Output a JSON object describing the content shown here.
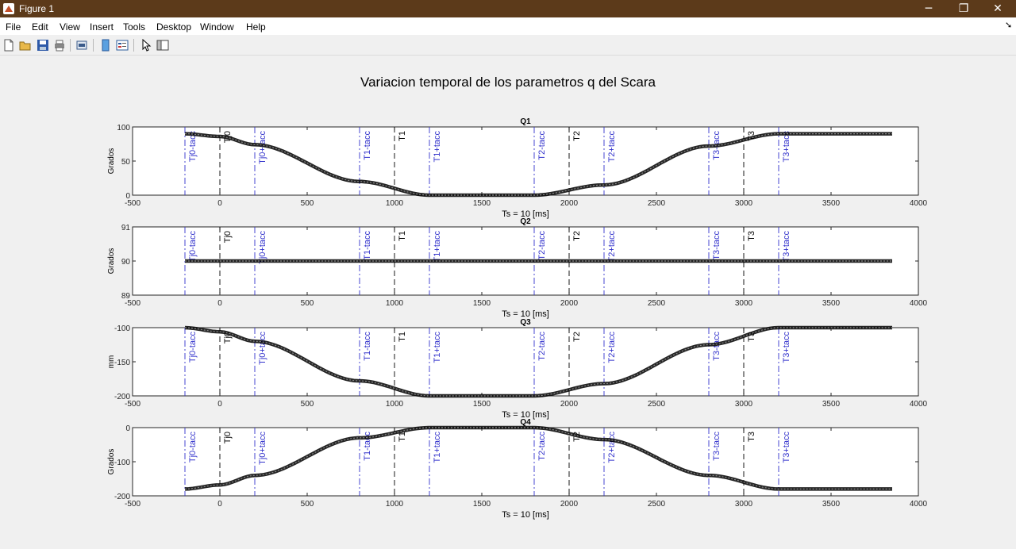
{
  "window": {
    "title": "Figure 1",
    "min": "─",
    "max": "❐",
    "close": "✕"
  },
  "menu": [
    "File",
    "Edit",
    "View",
    "Insert",
    "Tools",
    "Desktop",
    "Window",
    "Help"
  ],
  "menu_arrow": "➘",
  "toolbar_icons": [
    "new-figure-icon",
    "open-file-icon",
    "save-icon",
    "print-icon",
    "print-preview-icon",
    "colorbar-icon",
    "legend-icon",
    "pointer-icon",
    "property-editor-icon"
  ],
  "figure": {
    "title": "Variacion temporal de los parametros q del Scara",
    "xlabel": "Ts = 10 [ms]",
    "xticks": [
      -500,
      0,
      500,
      1000,
      1500,
      2000,
      2500,
      3000,
      3500,
      4000
    ],
    "colors": {
      "curve": "#000000",
      "blue_lines": "#3333cc",
      "black_lines": "#000000"
    },
    "vlines": [
      {
        "x": -200,
        "label": "Tj0-tacc",
        "kind": "blue"
      },
      {
        "x": 0,
        "label": "Tj0",
        "kind": "black"
      },
      {
        "x": 200,
        "label": "Tj0+tacc",
        "kind": "blue"
      },
      {
        "x": 800,
        "label": "T1-tacc",
        "kind": "blue"
      },
      {
        "x": 1000,
        "label": "T1",
        "kind": "black"
      },
      {
        "x": 1200,
        "label": "T1+tacc",
        "kind": "blue"
      },
      {
        "x": 1800,
        "label": "T2-tacc",
        "kind": "blue"
      },
      {
        "x": 2000,
        "label": "T2",
        "kind": "black"
      },
      {
        "x": 2200,
        "label": "T2+tacc",
        "kind": "blue"
      },
      {
        "x": 2800,
        "label": "T3-tacc",
        "kind": "blue"
      },
      {
        "x": 3000,
        "label": "T3",
        "kind": "black"
      },
      {
        "x": 3200,
        "label": "T3+tacc",
        "kind": "blue"
      }
    ]
  },
  "chart_data": [
    {
      "type": "line",
      "title": "Q1",
      "ylabel": "Grados",
      "xlabel": "Ts = 10 [ms]",
      "xlim": [
        -500,
        4000
      ],
      "ylim": [
        0,
        100
      ],
      "yticks": [
        0,
        50,
        100
      ],
      "x": [
        -200,
        0,
        200,
        800,
        1200,
        1800,
        2200,
        2800,
        3200,
        3850
      ],
      "y": [
        90,
        86,
        74,
        20,
        0,
        0,
        15,
        72,
        90,
        90
      ]
    },
    {
      "type": "line",
      "title": "Q2",
      "ylabel": "Grados",
      "xlabel": "Ts = 10 [ms]",
      "xlim": [
        -500,
        4000
      ],
      "ylim": [
        89,
        91
      ],
      "yticks": [
        89,
        90,
        91
      ],
      "x": [
        -200,
        3850
      ],
      "y": [
        90,
        90
      ]
    },
    {
      "type": "line",
      "title": "Q3",
      "ylabel": "mm",
      "xlabel": "Ts = 10 [ms]",
      "xlim": [
        -500,
        4000
      ],
      "ylim": [
        -200,
        -100
      ],
      "yticks": [
        -200,
        -150,
        -100
      ],
      "x": [
        -200,
        0,
        200,
        800,
        1200,
        1800,
        2200,
        2800,
        3200,
        3850
      ],
      "y": [
        -100,
        -106,
        -120,
        -178,
        -200,
        -200,
        -182,
        -125,
        -100,
        -100
      ]
    },
    {
      "type": "line",
      "title": "Q4",
      "ylabel": "Grados",
      "xlabel": "Ts = 10 [ms]",
      "xlim": [
        -500,
        4000
      ],
      "ylim": [
        -200,
        0
      ],
      "yticks": [
        -200,
        -100,
        0
      ],
      "x": [
        -200,
        0,
        200,
        800,
        1200,
        1800,
        2200,
        2800,
        3200,
        3850
      ],
      "y": [
        -180,
        -168,
        -140,
        -30,
        0,
        0,
        -35,
        -140,
        -180,
        -180
      ]
    }
  ]
}
